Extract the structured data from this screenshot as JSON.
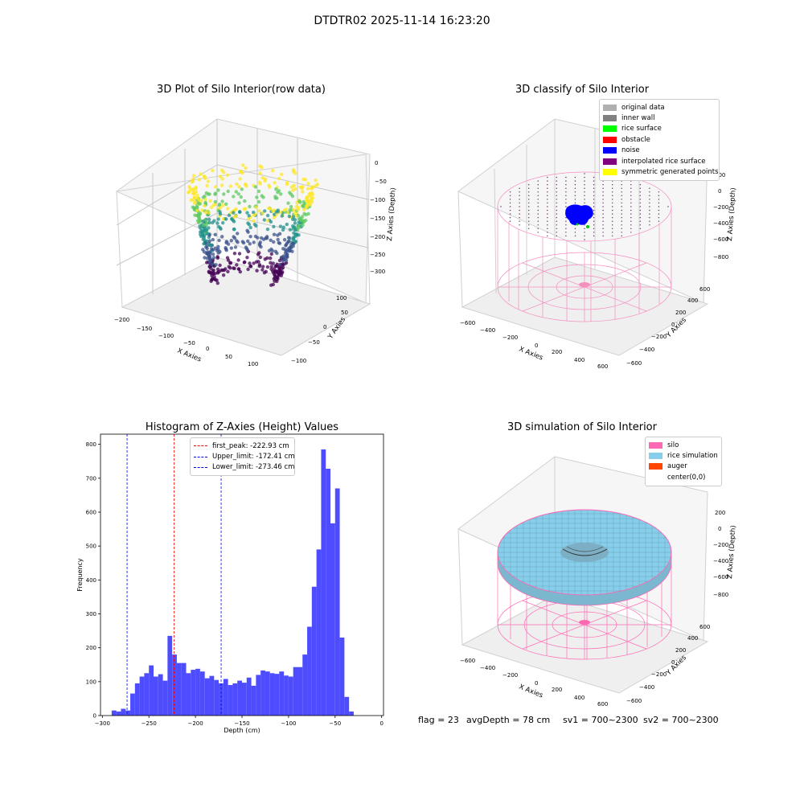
{
  "suptitle": "DTDTR02 2025-11-14 16:23:20",
  "panels": {
    "raw": {
      "title": "3D Plot of Silo Interior(row data)",
      "xlabel": "X Axies",
      "ylabel": "Y Axies",
      "zlabel": "Z Axies (Depth)",
      "xticks": [
        "−200",
        "−150",
        "−100",
        "−50",
        "0",
        "50",
        "100"
      ],
      "yticks": [
        "100",
        "50",
        "0",
        "−50",
        "−100"
      ],
      "zticks": [
        "0",
        "−50",
        "−100",
        "−150",
        "−200",
        "−250",
        "−300"
      ],
      "colormap": [
        "#440154",
        "#3b528b",
        "#21918c",
        "#5ec962",
        "#fde725"
      ]
    },
    "classify": {
      "title": "3D classify of Silo Interior",
      "xlabel": "X Axies",
      "ylabel": "Y Axies",
      "zlabel": "Z Axies (Depth)",
      "xticks": [
        "−600",
        "−400",
        "−200",
        "0",
        "200",
        "400",
        "600"
      ],
      "yticks": [
        "600",
        "400",
        "200",
        "0",
        "−200",
        "−400",
        "−600"
      ],
      "zticks": [
        "200",
        "0",
        "−200",
        "−400",
        "−600",
        "−800"
      ],
      "legend": [
        {
          "label": "original data",
          "color": "#b0b0b0"
        },
        {
          "label": "inner wall",
          "color": "#808080"
        },
        {
          "label": "rice surface",
          "color": "#00ff00"
        },
        {
          "label": "obstacle",
          "color": "#ff0000"
        },
        {
          "label": "noise",
          "color": "#0000ff"
        },
        {
          "label": "interpolated rice surface",
          "color": "#800080"
        },
        {
          "label": "symmetric generated points",
          "color": "#ffff00"
        }
      ]
    },
    "simulation": {
      "title": "3D simulation of Silo Interior",
      "xlabel": "X Axies",
      "ylabel": "Y Axies",
      "zlabel": "Z Axies (Depth)",
      "xticks": [
        "−600",
        "−400",
        "−200",
        "0",
        "200",
        "400",
        "600"
      ],
      "yticks": [
        "600",
        "400",
        "200",
        "0",
        "−200",
        "−400",
        "−600"
      ],
      "zticks": [
        "200",
        "0",
        "−200",
        "−400",
        "−600",
        "−800"
      ],
      "legend": [
        {
          "label": "silo",
          "color": "#ff69b4"
        },
        {
          "label": "rice simulation",
          "color": "#87ceeb"
        },
        {
          "label": "auger",
          "color": "#ff4500"
        },
        {
          "label": "center(0,0)",
          "color": "#ffffff"
        }
      ]
    }
  },
  "footer": {
    "flag": "flag = 23",
    "avgdepth": "avgDepth = 78 cm",
    "sv1": "sv1 = 700~2300",
    "sv2": "sv2 = 700~2300"
  },
  "chart_data": {
    "type": "bar",
    "title": "Histogram of Z-Axies (Height) Values",
    "xlabel": "Depth (cm)",
    "ylabel": "Frequency",
    "xlim": [
      -302,
      2
    ],
    "ylim": [
      0,
      830
    ],
    "xticks": [
      -300,
      -250,
      -200,
      -150,
      -100,
      -50,
      0
    ],
    "yticks": [
      0,
      100,
      200,
      300,
      400,
      500,
      600,
      700,
      800
    ],
    "bar_color": "#4d4dff",
    "bins": [
      [
        -290,
        -285,
        15
      ],
      [
        -285,
        -280,
        12
      ],
      [
        -280,
        -275,
        20
      ],
      [
        -275,
        -270,
        15
      ],
      [
        -270,
        -265,
        65
      ],
      [
        -265,
        -260,
        95
      ],
      [
        -260,
        -255,
        115
      ],
      [
        -255,
        -250,
        125
      ],
      [
        -250,
        -245,
        148
      ],
      [
        -245,
        -240,
        115
      ],
      [
        -240,
        -235,
        122
      ],
      [
        -235,
        -230,
        103
      ],
      [
        -230,
        -225,
        235
      ],
      [
        -225,
        -220,
        180
      ],
      [
        -220,
        -215,
        155
      ],
      [
        -215,
        -210,
        155
      ],
      [
        -210,
        -205,
        125
      ],
      [
        -205,
        -200,
        135
      ],
      [
        -200,
        -195,
        138
      ],
      [
        -195,
        -190,
        130
      ],
      [
        -190,
        -185,
        110
      ],
      [
        -185,
        -180,
        117
      ],
      [
        -180,
        -175,
        105
      ],
      [
        -175,
        -170,
        95
      ],
      [
        -170,
        -165,
        108
      ],
      [
        -165,
        -160,
        90
      ],
      [
        -160,
        -155,
        95
      ],
      [
        -155,
        -150,
        103
      ],
      [
        -150,
        -145,
        97
      ],
      [
        -145,
        -140,
        112
      ],
      [
        -140,
        -135,
        88
      ],
      [
        -135,
        -130,
        120
      ],
      [
        -130,
        -125,
        133
      ],
      [
        -125,
        -120,
        130
      ],
      [
        -120,
        -115,
        125
      ],
      [
        -115,
        -110,
        123
      ],
      [
        -110,
        -105,
        130
      ],
      [
        -105,
        -100,
        118
      ],
      [
        -100,
        -95,
        115
      ],
      [
        -95,
        -90,
        143
      ],
      [
        -90,
        -85,
        143
      ],
      [
        -85,
        -80,
        180
      ],
      [
        -80,
        -75,
        262
      ],
      [
        -75,
        -70,
        380
      ],
      [
        -70,
        -65,
        490
      ],
      [
        -65,
        -60,
        785
      ],
      [
        -60,
        -55,
        728
      ],
      [
        -55,
        -50,
        567
      ],
      [
        -50,
        -45,
        670
      ],
      [
        -45,
        -40,
        230
      ],
      [
        -40,
        -35,
        55
      ],
      [
        -35,
        -30,
        12
      ]
    ],
    "vlines": [
      {
        "label": "first_peak: -222.93 cm",
        "x": -222.93,
        "color": "#ff0000"
      },
      {
        "label": "Upper_limit: -172.41 cm",
        "x": -172.41,
        "color": "#0000ff"
      },
      {
        "label": "Lower_limit: -273.46 cm",
        "x": -273.46,
        "color": "#0000ff"
      }
    ]
  }
}
